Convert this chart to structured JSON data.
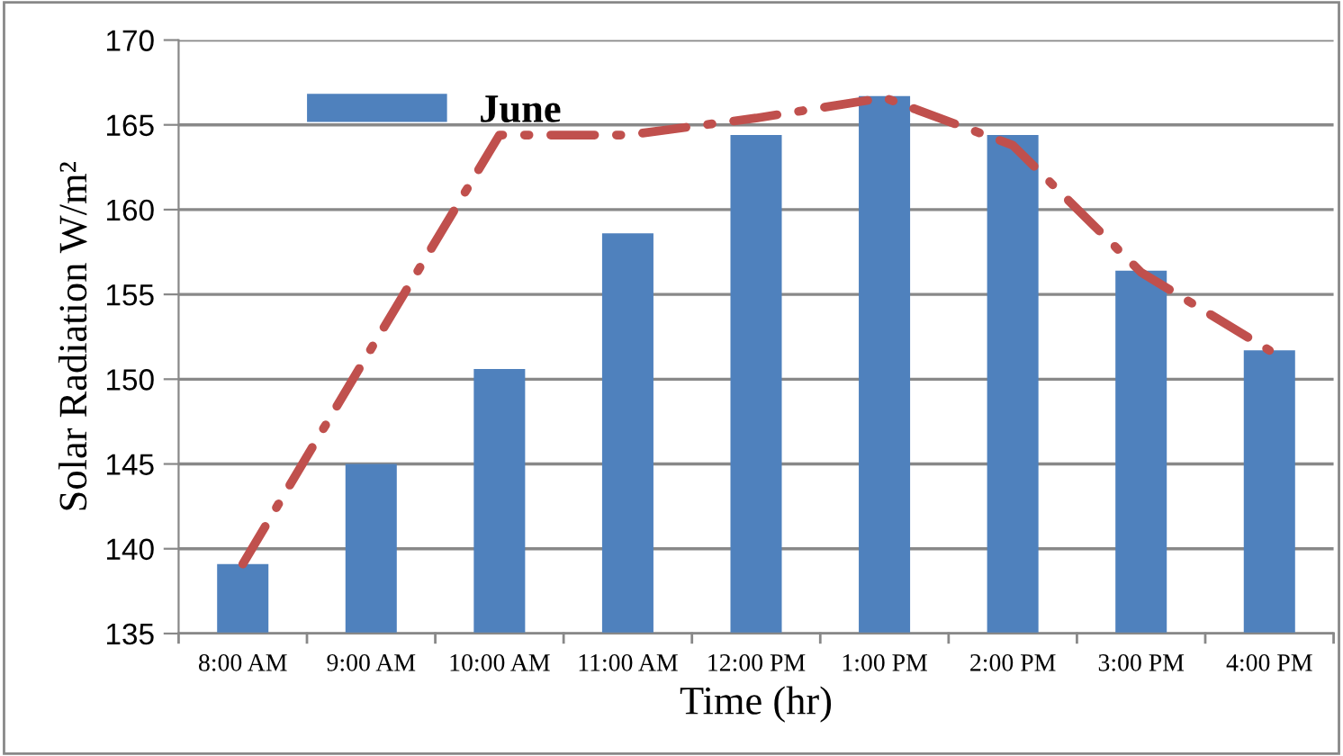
{
  "chart_data": {
    "type": "bar",
    "xlabel": "Time (hr)",
    "ylabel": "Solar Radiation W/m²",
    "categories": [
      "8:00 AM",
      "9:00 AM",
      "10:00 AM",
      "11:00 AM",
      "12:00 PM",
      "1:00 PM",
      "2:00 PM",
      "3:00 PM",
      "4:00 PM"
    ],
    "series": [
      {
        "name": "June",
        "color": "#4f81bd",
        "values": [
          139.1,
          145.0,
          150.6,
          158.6,
          164.4,
          166.7,
          164.4,
          156.4,
          151.7
        ]
      },
      {
        "type": "line",
        "color": "#c0504d",
        "line_style": "dashed",
        "values": [
          139.1,
          151.8,
          164.4,
          164.4,
          165.4,
          166.6,
          163.8,
          156.3,
          151.7
        ]
      }
    ],
    "ylim": [
      135,
      170
    ],
    "yticks": [
      135,
      140,
      145,
      150,
      155,
      160,
      165,
      170
    ],
    "grid": "y",
    "legend": "top left"
  }
}
